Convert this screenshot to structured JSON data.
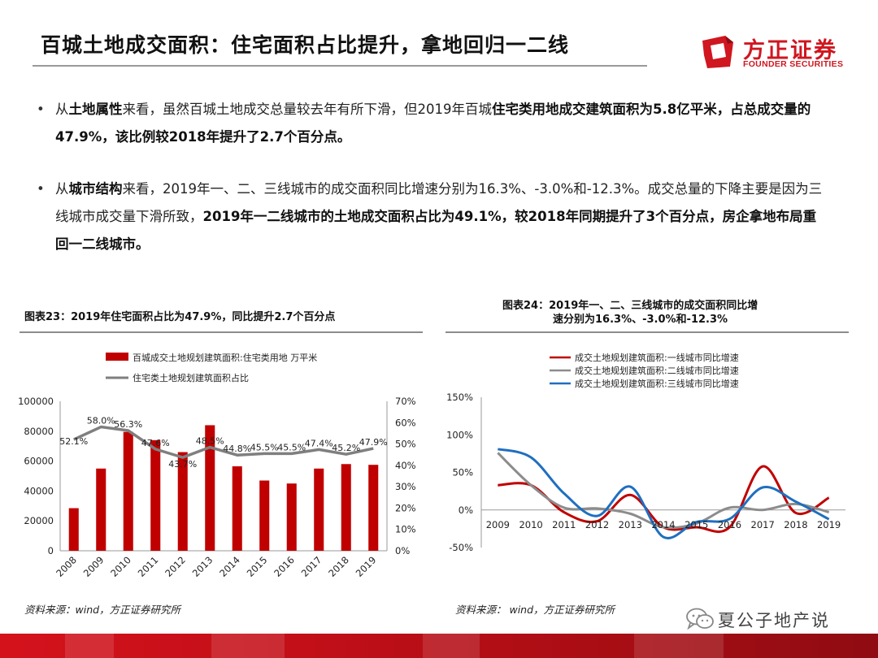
{
  "header": {
    "title": "百城土地成交面积：住宅面积占比提升，拿地回归一二线",
    "logo_cn": "方正证券",
    "logo_en": "FOUNDER SECURITIES",
    "brand_color": "#d0161f"
  },
  "bullets": [
    {
      "symbol": "•",
      "segments": [
        {
          "text": "从",
          "bold": false
        },
        {
          "text": "土地属性",
          "bold": true
        },
        {
          "text": "来看，虽然百城土地成交总量较去年有所下滑，但2019年百城",
          "bold": false
        },
        {
          "text": "住宅类用地成交建筑面积为5.8亿平米，占总成交量的47.9%，该比例较2018年提升了2.7个百分点。",
          "bold": true
        }
      ]
    },
    {
      "symbol": "•",
      "segments": [
        {
          "text": "从",
          "bold": false
        },
        {
          "text": "城市结构",
          "bold": true
        },
        {
          "text": "来看，2019年一、二、三线城市的成交面积同比增速分别为16.3%、-3.0%和-12.3%。成交总量的下降主要是因为三线城市成交量下滑所致，",
          "bold": false
        },
        {
          "text": "2019年一二线城市的土地成交面积占比为49.1%，较2018年同期提升了3个百分点，房企拿地布局重回一二线城市。",
          "bold": true
        }
      ]
    }
  ],
  "charts": {
    "chart23": {
      "title": "图表23：2019年住宅面积占比为47.9%，同比提升2.7个百分点",
      "source": "资料来源：wind，方正证券研究所"
    },
    "chart24": {
      "title_line1": "图表24：2019年一、二、三线城市的成交面积同比增",
      "title_line2": "速分别为16.3%、-3.0%和-12.3%",
      "source": "资料来源：  wind，方正证券研究所"
    }
  },
  "chart_data": [
    {
      "type": "bar",
      "title": "图表23：2019年住宅面积占比为47.9%，同比提升2.7个百分点",
      "categories": [
        "2008",
        "2009",
        "2010",
        "2011",
        "2012",
        "2013",
        "2014",
        "2015",
        "2016",
        "2017",
        "2018",
        "2019"
      ],
      "series": [
        {
          "name": "百城成交土地规划建筑面积:住宅类用地 万平米",
          "type": "bar",
          "axis": "left",
          "color": "#c00000",
          "values": [
            28500,
            55000,
            79500,
            74000,
            66000,
            84000,
            56500,
            47000,
            45000,
            55000,
            58000,
            57500
          ]
        },
        {
          "name": "住宅类土地规划建筑面积占比",
          "type": "line",
          "axis": "right",
          "color": "#7f7f7f",
          "values": [
            52.1,
            58.0,
            56.3,
            47.6,
            43.7,
            48.5,
            44.8,
            45.5,
            45.5,
            47.4,
            45.2,
            47.9
          ],
          "labels": [
            "52.1%",
            "58.0%",
            "56.3%",
            "47.6%",
            "43.7%",
            "48.5%",
            "44.8%",
            "45.5%",
            "45.5%",
            "47.4%",
            "45.2%",
            "47.9%"
          ]
        }
      ],
      "yticks_left": [
        "0",
        "20000",
        "40000",
        "60000",
        "80000",
        "100000"
      ],
      "yticks_right": [
        "0%",
        "10%",
        "20%",
        "30%",
        "40%",
        "50%",
        "60%",
        "70%"
      ],
      "ylim_left": [
        0,
        100000
      ],
      "ylim_right": [
        0,
        70
      ],
      "legend_position": "top",
      "grid": false
    },
    {
      "type": "line",
      "title": "图表24：2019年一、二、三线城市的成交面积同比增速分别为16.3%、-3.0%和-12.3%",
      "categories": [
        "2009",
        "2010",
        "2011",
        "2012",
        "2013",
        "2014",
        "2015",
        "2016",
        "2017",
        "2018",
        "2019"
      ],
      "series": [
        {
          "name": "成交土地规划建筑面积:一线城市同比增速",
          "color": "#c00000",
          "values": [
            33,
            33,
            -3,
            -15,
            20,
            -23,
            -23,
            -23,
            58,
            -4,
            16.3
          ]
        },
        {
          "name": "成交土地规划建筑面积:二线城市同比增速",
          "color": "#8c8c8c",
          "values": [
            76,
            33,
            3,
            2,
            -5,
            -23,
            -18,
            3,
            0,
            8,
            -3.0
          ]
        },
        {
          "name": "成交土地规划建筑面积:三线城市同比增速",
          "color": "#1f6fbf",
          "values": [
            81,
            70,
            22,
            -8,
            31,
            -36,
            -16,
            -12,
            30,
            11,
            -12.3
          ]
        }
      ],
      "yticks": [
        "-50%",
        "0%",
        "50%",
        "100%",
        "150%"
      ],
      "ylim": [
        -50,
        150
      ],
      "legend_position": "top",
      "grid": false
    }
  ],
  "footer": {
    "wechat_name": "夏公子地产说"
  }
}
